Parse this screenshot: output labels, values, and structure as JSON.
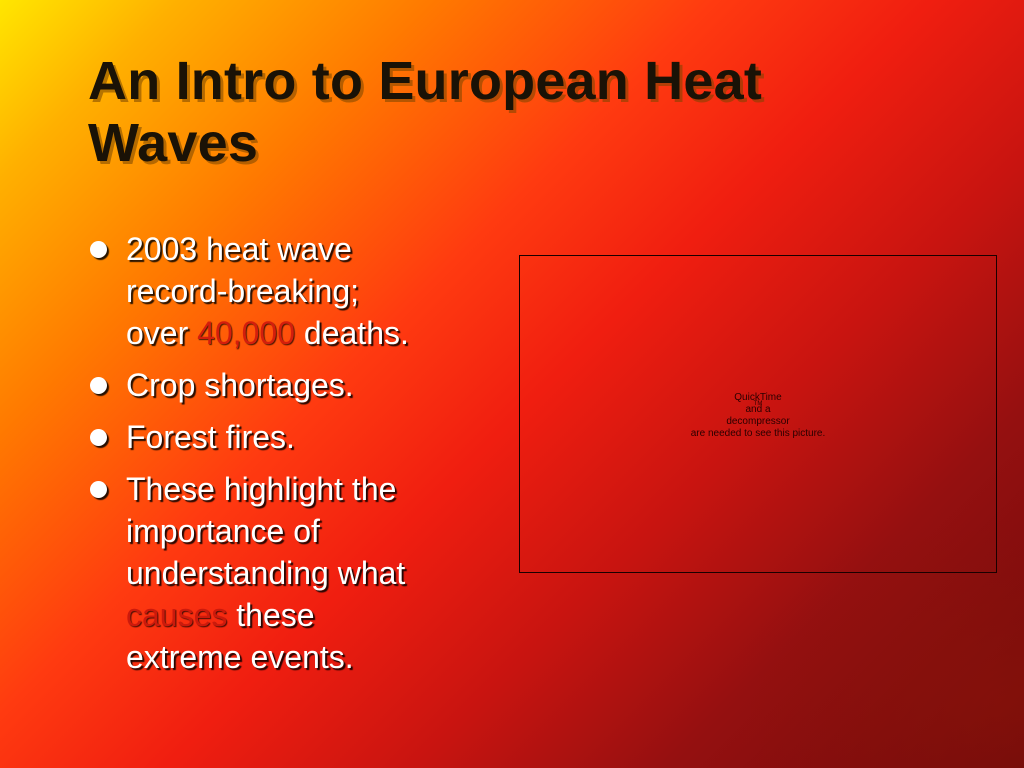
{
  "slide": {
    "title_line1": "An Intro to European Heat",
    "title_line2": "Waves",
    "bullets": [
      {
        "line1": "2003 heat wave",
        "line2": "record-breaking;",
        "line3_prefix": "over ",
        "line3_highlight": "40,000",
        "line3_suffix": " deaths."
      },
      {
        "text": "Crop shortages."
      },
      {
        "text": "Forest fires."
      },
      {
        "line1": "These highlight the",
        "line2": "importance of",
        "line3": "understanding what",
        "line4_highlight": "causes",
        "line4_suffix": " these",
        "line5": "extreme events."
      }
    ],
    "picture_placeholder": {
      "line1_prefix": "QuickTime",
      "line1_tm": "TM",
      "line1_suffix": " and a",
      "line2": "decompressor",
      "line3": "are needed to see this picture."
    },
    "colors": {
      "gradient_start": "#ffe600",
      "gradient_mid": "#f01e10",
      "gradient_end": "#6e0a0a",
      "title_text": "#1a1206",
      "body_text": "#ffffff",
      "highlight": "#d41e0c"
    },
    "icons": {
      "bullet": "filled-circle-bullet"
    }
  }
}
